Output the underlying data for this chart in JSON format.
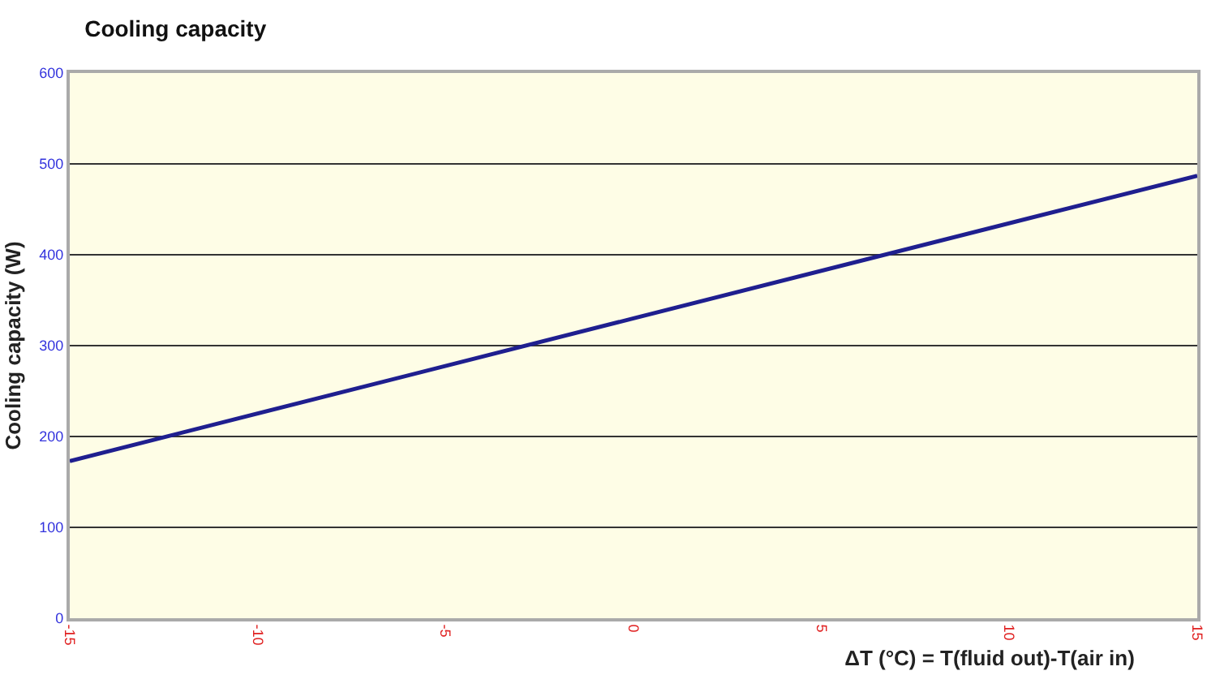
{
  "chart_data": {
    "type": "line",
    "title": "Cooling capacity",
    "xlabel": "ΔT (°C) = T(fluid out)-T(air in)",
    "ylabel": "Cooling capacity (W)",
    "x": [
      -15,
      0,
      15
    ],
    "series": [
      {
        "color": "#1f1f8f",
        "values": [
          173,
          330,
          487
        ]
      }
    ],
    "xlim": [
      -15,
      15
    ],
    "xticks": [
      -15,
      -10,
      -5,
      0,
      5,
      10,
      15
    ],
    "ylim": [
      0,
      600
    ],
    "yticks": [
      0,
      100,
      200,
      300,
      400,
      500,
      600
    ],
    "grid": "y",
    "legend": false,
    "marker": "none",
    "line_style": "solid"
  }
}
